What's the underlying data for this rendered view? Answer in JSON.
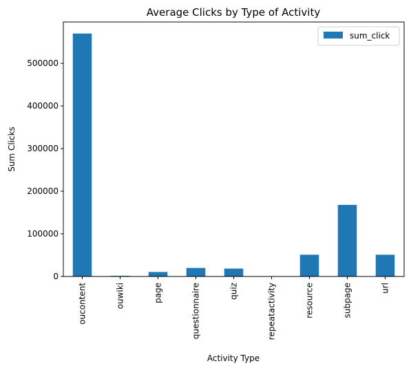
{
  "chart_data": {
    "type": "bar",
    "title": "Average Clicks by Type of Activity",
    "xlabel": "Activity Type",
    "ylabel": "Sum Clicks",
    "categories": [
      "oucontent",
      "ouwiki",
      "page",
      "questionnaire",
      "quiz",
      "repeatactivity",
      "resource",
      "subpage",
      "url"
    ],
    "series": [
      {
        "name": "sum_click",
        "values": [
          570000,
          1500,
          10500,
          20000,
          18500,
          100,
          51000,
          168000,
          51000
        ]
      }
    ],
    "ylim": [
      0,
      597000
    ],
    "yticks": [
      0,
      100000,
      200000,
      300000,
      400000,
      500000
    ],
    "ytick_labels": [
      "0",
      "100000",
      "200000",
      "300000",
      "400000",
      "500000"
    ],
    "legend_position": "top-right",
    "grid": false,
    "colors": {
      "bar": "#1f77b4",
      "axis": "#000000",
      "background": "#ffffff"
    }
  }
}
